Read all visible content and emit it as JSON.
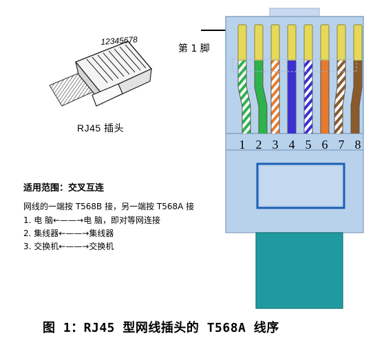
{
  "plug": {
    "pin_numbers": "12345678",
    "caption": "RJ45 插头"
  },
  "connector": {
    "pin1_label": "第 1 脚",
    "pin_numbers": [
      "1",
      "2",
      "3",
      "4",
      "5",
      "6",
      "7",
      "8"
    ],
    "wires": [
      {
        "pin": "1",
        "base": "#ffffff",
        "stripe": "#2db34a"
      },
      {
        "pin": "2",
        "base": "#2db34a",
        "stripe": null
      },
      {
        "pin": "3",
        "base": "#ffffff",
        "stripe": "#e87a2c"
      },
      {
        "pin": "4",
        "base": "#3b2fd6",
        "stripe": null
      },
      {
        "pin": "5",
        "base": "#ffffff",
        "stripe": "#3b2fd6"
      },
      {
        "pin": "6",
        "base": "#e87a2c",
        "stripe": null
      },
      {
        "pin": "7",
        "base": "#ffffff",
        "stripe": "#8b5a2b"
      },
      {
        "pin": "8",
        "base": "#8b5a2b",
        "stripe": null
      }
    ],
    "colors": {
      "body": "#b9d2ec",
      "contact": "#e6d95a",
      "latch_outline": "#1a5fb4",
      "cable": "#1f9aa0"
    }
  },
  "usage": {
    "title": "适用范围：交叉互连",
    "rule": "网线的一端按 T568B 接，另一端按 T568A 接",
    "items": [
      "1.  电   脑←——→电   脑，即对等网连接",
      "2.  集线器←——→集线器",
      "3.  交换机←——→交换机"
    ]
  },
  "figure_caption": "图 1：RJ45 型网线插头的 T568A 线序"
}
